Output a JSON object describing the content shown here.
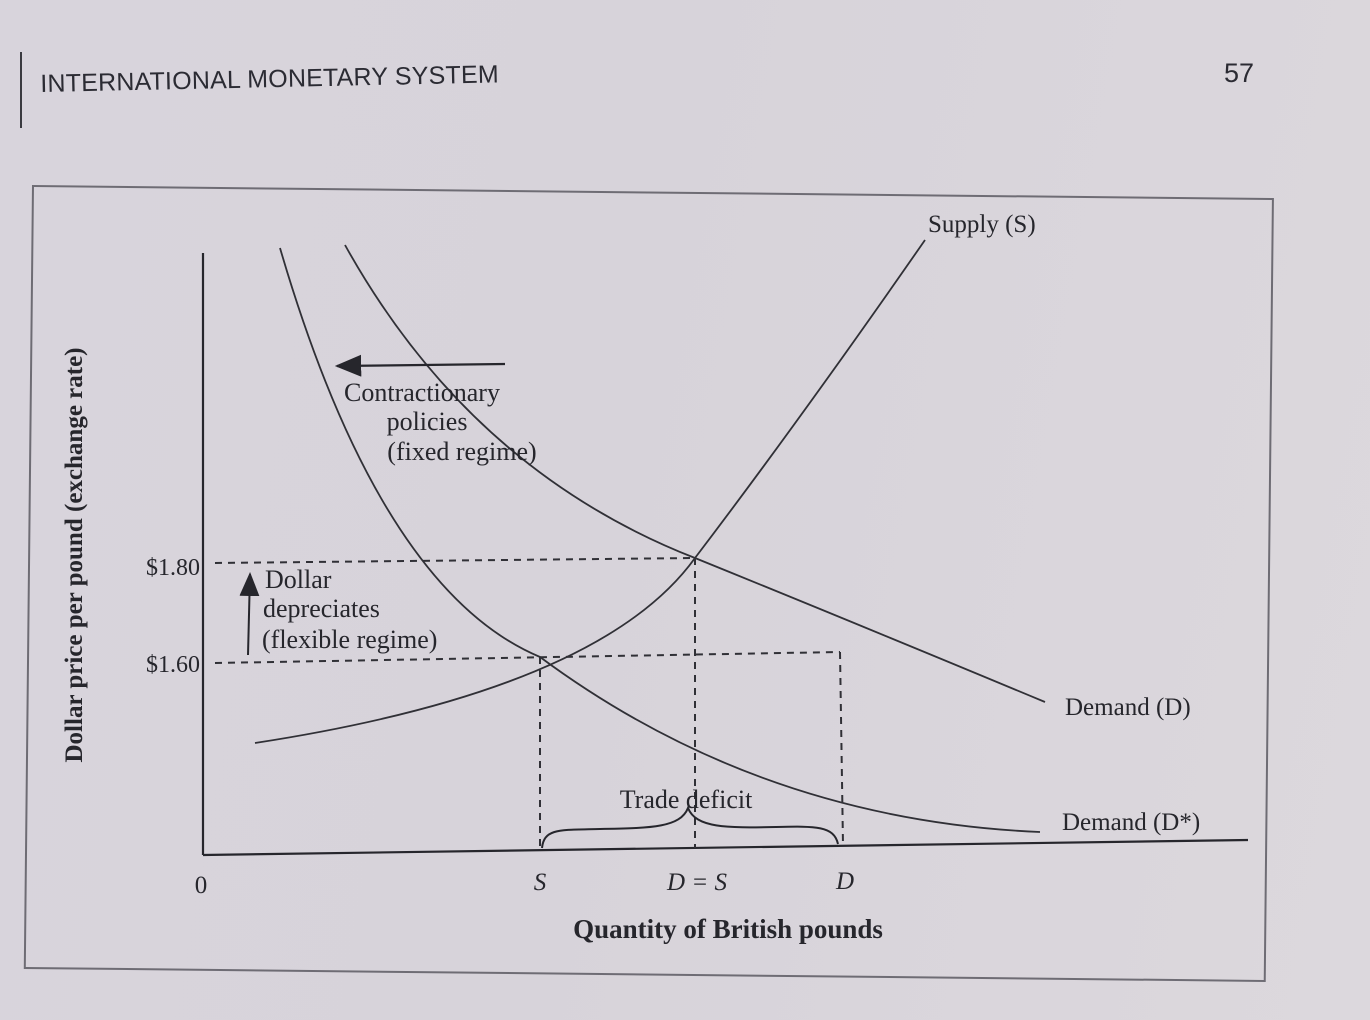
{
  "header": {
    "running_head": "INTERNATIONAL MONETARY SYSTEM",
    "page_number": "57"
  },
  "diagram": {
    "y_axis_label": "Dollar price per pound (exchange rate)",
    "x_axis_label": "Quantity of British pounds",
    "origin_label": "0",
    "price_high": "$1.80",
    "price_low": "$1.60",
    "x_tick_s": "S",
    "x_tick_ds": "D = S",
    "x_tick_d": "D",
    "supply_label": "Supply (S)",
    "demand_label": "Demand (D)",
    "demand_star_label": "Demand (D*)",
    "contractionary_lines": [
      "Contractionary",
      "policies",
      "(fixed regime)"
    ],
    "dollar_lines": [
      "Dollar",
      "depreciates",
      "(flexible regime)"
    ],
    "trade_deficit_label": "Trade deficit"
  }
}
